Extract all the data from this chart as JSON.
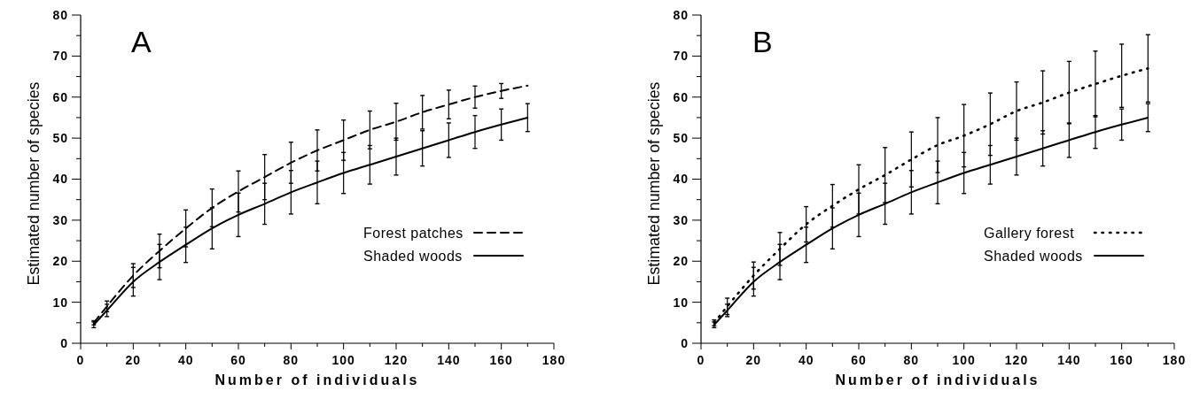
{
  "chart_data": [
    {
      "type": "line",
      "title": "A",
      "xlabel": "Number of individuals",
      "ylabel": "Estimated number of species",
      "x": [
        5,
        10,
        20,
        30,
        40,
        50,
        60,
        70,
        80,
        90,
        100,
        110,
        120,
        130,
        140,
        150,
        160,
        170
      ],
      "xlim": [
        0,
        180
      ],
      "xticks": [
        0,
        {
          "value": 10,
          "label": null
        },
        20,
        {
          "value": 30,
          "label": null
        },
        40,
        {
          "value": 50,
          "label": null
        },
        60,
        {
          "value": 70,
          "label": null
        },
        80,
        {
          "value": 90,
          "label": null
        },
        100,
        {
          "value": 110,
          "label": null
        },
        120,
        {
          "value": 130,
          "label": null
        },
        140,
        {
          "value": 150,
          "label": null
        },
        160,
        {
          "value": 170,
          "label": null
        },
        180
      ],
      "ylim": [
        0,
        80
      ],
      "yticks": [
        0,
        {
          "value": 5,
          "label": null
        },
        10,
        {
          "value": 15,
          "label": null
        },
        20,
        {
          "value": 25,
          "label": null
        },
        30,
        {
          "value": 35,
          "label": null
        },
        40,
        {
          "value": 45,
          "label": null
        },
        50,
        {
          "value": 55,
          "label": null
        },
        60,
        {
          "value": 65,
          "label": null
        },
        70,
        {
          "value": 75,
          "label": null
        },
        80
      ],
      "legend": "bottom right",
      "grid": false,
      "series": [
        {
          "name": "Forest patches",
          "color": "#000000",
          "line_style": "dashed",
          "values": [
            5,
            9,
            16.5,
            22.5,
            28,
            33,
            37,
            40.5,
            44,
            47,
            49.5,
            52,
            54,
            56.3,
            58.2,
            60,
            61.5,
            62.8
          ],
          "errors": [
            0.5,
            1.3,
            2.9,
            4.1,
            4.5,
            4.6,
            5,
            5.5,
            5,
            5,
            4.9,
            4.6,
            4.5,
            4.1,
            3.5,
            2.7,
            1.8,
            null
          ]
        },
        {
          "name": "Shaded woods",
          "color": "#000000",
          "line_style": "solid",
          "values": [
            4.5,
            8,
            15,
            19.8,
            24,
            28,
            31.3,
            34,
            36.8,
            39.2,
            41.5,
            43.5,
            45.5,
            47.5,
            49.5,
            51.5,
            53.3,
            55
          ],
          "errors": [
            0.7,
            1.5,
            3.5,
            4.3,
            4.3,
            5,
            5.3,
            5,
            5.3,
            5.2,
            5,
            4.7,
            4.5,
            4.3,
            4.2,
            4,
            3.8,
            3.4
          ]
        }
      ]
    },
    {
      "type": "line",
      "title": "B",
      "xlabel": "Number of individuals",
      "ylabel": "Estimated number of species",
      "x": [
        5,
        10,
        20,
        30,
        40,
        50,
        60,
        70,
        80,
        90,
        100,
        110,
        120,
        130,
        140,
        150,
        160,
        170
      ],
      "xlim": [
        0,
        180
      ],
      "xticks": [
        0,
        {
          "value": 10,
          "label": null
        },
        20,
        {
          "value": 30,
          "label": null
        },
        40,
        {
          "value": 50,
          "label": null
        },
        60,
        {
          "value": 70,
          "label": null
        },
        80,
        {
          "value": 90,
          "label": null
        },
        100,
        {
          "value": 110,
          "label": null
        },
        120,
        {
          "value": 130,
          "label": null
        },
        140,
        {
          "value": 150,
          "label": null
        },
        160,
        {
          "value": 170,
          "label": null
        },
        180
      ],
      "ylim": [
        0,
        80
      ],
      "yticks": [
        0,
        {
          "value": 5,
          "label": null
        },
        10,
        {
          "value": 15,
          "label": null
        },
        20,
        {
          "value": 25,
          "label": null
        },
        30,
        {
          "value": 35,
          "label": null
        },
        40,
        {
          "value": 45,
          "label": null
        },
        50,
        {
          "value": 55,
          "label": null
        },
        60,
        {
          "value": 65,
          "label": null
        },
        70,
        {
          "value": 75,
          "label": null
        },
        80
      ],
      "legend": "bottom right",
      "grid": false,
      "series": [
        {
          "name": "Gallery forest",
          "color": "#000000",
          "line_style": "dotted",
          "values": [
            5,
            9,
            16.5,
            23,
            29,
            33.5,
            37.5,
            41,
            44.8,
            48.3,
            50.6,
            53.4,
            56.6,
            58.7,
            61.1,
            63.2,
            65.2,
            67
          ],
          "errors": [
            0.7,
            2,
            3.3,
            4,
            4.3,
            5.2,
            6,
            6.7,
            6.7,
            6.7,
            7.6,
            7.6,
            7.1,
            7.7,
            7.6,
            8,
            7.7,
            8.2
          ]
        },
        {
          "name": "Shaded woods",
          "color": "#000000",
          "line_style": "solid",
          "values": [
            4.5,
            8,
            15,
            19.8,
            24,
            28,
            31.3,
            34,
            36.8,
            39.2,
            41.5,
            43.5,
            45.5,
            47.5,
            49.5,
            51.5,
            53.3,
            55
          ],
          "errors": [
            0.7,
            1.5,
            3.5,
            4.3,
            4.3,
            5,
            5.3,
            5,
            5.3,
            5.2,
            5,
            4.7,
            4.5,
            4.3,
            4.2,
            4,
            3.8,
            3.4
          ]
        }
      ]
    }
  ]
}
